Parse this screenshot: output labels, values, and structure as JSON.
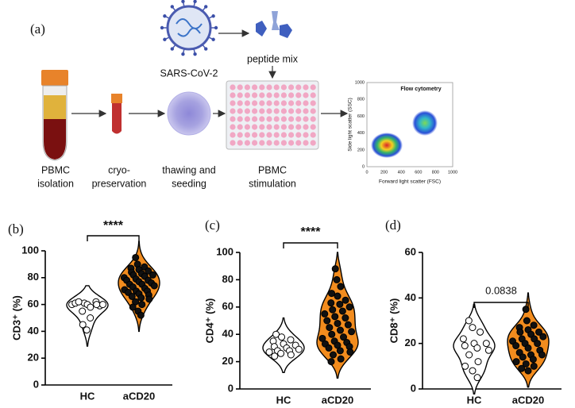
{
  "diagram": {
    "panel": "(a)",
    "virus": "SARS-CoV-2",
    "peptide": "peptide mix",
    "steps": [
      [
        "PBMC",
        "isolation"
      ],
      [
        "cryo-",
        "preservation"
      ],
      [
        "thawing and",
        "seeding"
      ],
      [
        "PBMC",
        "stimulation"
      ]
    ],
    "flow": {
      "title": "Flow cytometry",
      "xlabel": "Forward light scatter (FSC)",
      "ylabel": "Side light scatter (SSC)",
      "xticks": [
        "0",
        "200",
        "400",
        "600",
        "800",
        "1000"
      ],
      "yticks": [
        "0",
        "200",
        "400",
        "600",
        "800",
        "1000"
      ]
    }
  },
  "chart_data": [
    {
      "type": "violin",
      "panel": "(b)",
      "ylabel": "CD3⁺ (%)",
      "categories": [
        "HC",
        "aCD20"
      ],
      "colors": [
        "#ffffff",
        "#f28c1e"
      ],
      "annotation": "****",
      "values": [
        [
          60,
          61,
          62,
          61,
          60,
          59,
          62,
          58,
          60,
          55,
          50,
          45,
          41,
          60
        ],
        [
          95,
          90,
          88,
          87,
          86,
          85,
          84,
          83,
          82,
          82,
          81,
          80,
          79,
          78,
          78,
          77,
          76,
          75,
          75,
          74,
          73,
          72,
          71,
          70,
          70,
          69,
          68,
          67,
          66,
          65,
          64,
          62,
          60,
          58,
          55,
          52
        ]
      ],
      "ylim": [
        0,
        100
      ],
      "yticks": [
        0,
        20,
        40,
        60,
        80,
        100
      ]
    },
    {
      "type": "violin",
      "panel": "(c)",
      "ylabel": "CD4⁺ (%)",
      "categories": [
        "HC",
        "aCD20"
      ],
      "colors": [
        "#ffffff",
        "#f28c1e"
      ],
      "annotation": "****",
      "values": [
        [
          40,
          38,
          36,
          35,
          33,
          32,
          31,
          30,
          29,
          28,
          28,
          27,
          26,
          25,
          24
        ],
        [
          88,
          80,
          75,
          70,
          68,
          65,
          63,
          62,
          60,
          58,
          57,
          55,
          53,
          52,
          50,
          48,
          47,
          45,
          43,
          42,
          40,
          38,
          37,
          35,
          34,
          33,
          32,
          31,
          30,
          28,
          27,
          25,
          22,
          20
        ]
      ],
      "ylim": [
        0,
        100
      ],
      "yticks": [
        0,
        20,
        40,
        60,
        80,
        100
      ]
    },
    {
      "type": "violin",
      "panel": "(d)",
      "ylabel": "CD8⁺ (%)",
      "categories": [
        "HC",
        "aCD20"
      ],
      "colors": [
        "#ffffff",
        "#f28c1e"
      ],
      "annotation": "0.0838",
      "values": [
        [
          30,
          27,
          25,
          22,
          20,
          20,
          19,
          18,
          17,
          15,
          12,
          10,
          8,
          5
        ],
        [
          35,
          30,
          28,
          27,
          26,
          25,
          25,
          24,
          23,
          22,
          22,
          21,
          20,
          20,
          19,
          18,
          17,
          16,
          15,
          15,
          14,
          13,
          12,
          11,
          10,
          9,
          8
        ]
      ],
      "ylim": [
        0,
        60
      ],
      "yticks": [
        0,
        20,
        40,
        60
      ]
    }
  ]
}
